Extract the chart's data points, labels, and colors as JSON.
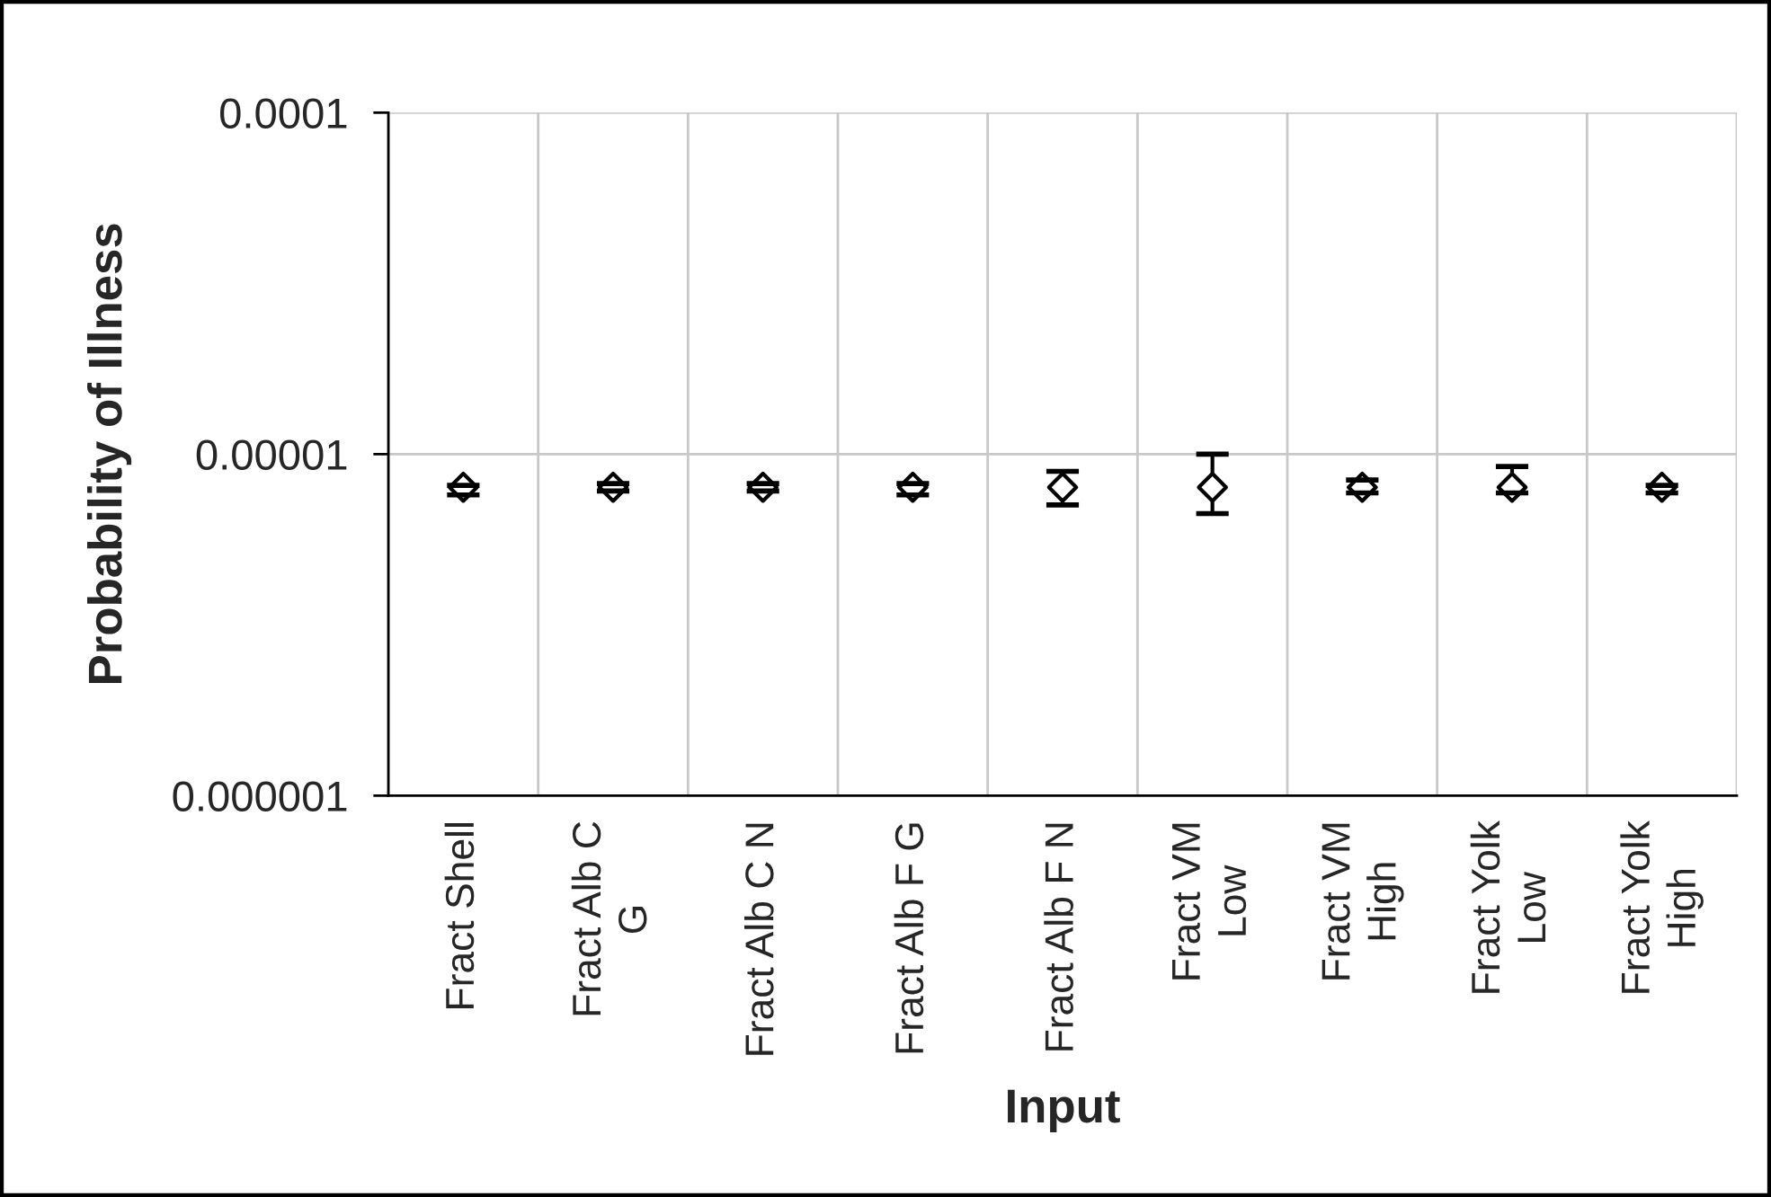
{
  "chart_data": {
    "type": "scatter",
    "xlabel": "Input",
    "ylabel": "Probability of Illness",
    "categories": [
      "Fract Shell",
      "Fract Alb C\nG",
      "Fract Alb C N",
      "Fract Alb F G",
      "Fract Alb F N",
      "Fract VM\nLow",
      "Fract VM\nHigh",
      "Fract Yolk\nLow",
      "Fract Yolk\nHigh"
    ],
    "series": [
      {
        "color": "#000000",
        "values": [
          8e-06,
          8e-06,
          8e-06,
          8e-06,
          8e-06,
          8e-06,
          8e-06,
          8e-06,
          8e-06
        ],
        "errors": [
          [
            7.6e-06,
            8.1e-06
          ],
          [
            7.8e-06,
            8.2e-06
          ],
          [
            7.8e-06,
            8.2e-06
          ],
          [
            7.6e-06,
            8.2e-06
          ],
          [
            7.1e-06,
            8.9e-06
          ],
          [
            6.7e-06,
            1e-05
          ],
          [
            7.7e-06,
            8.4e-06
          ],
          [
            7.7e-06,
            9.2e-06
          ],
          [
            7.7e-06,
            8.1e-06
          ]
        ]
      }
    ],
    "log": true,
    "ylim": [
      1e-06,
      0.0001
    ],
    "yticks": [
      {
        "value": 1e-06,
        "label": "0.000001"
      },
      {
        "value": 1e-05,
        "label": "0.00001"
      },
      {
        "value": 0.0001,
        "label": "0.0001"
      }
    ],
    "grid": true,
    "marker": "diamond"
  }
}
